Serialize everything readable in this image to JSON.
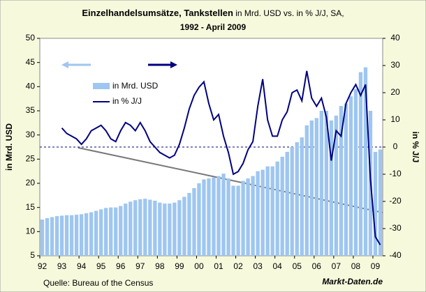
{
  "chart_data": {
    "type": "bar_line",
    "title": "Einzelhandelsumsätze, Tankstellen",
    "title_suffix": "in Mrd. USD vs. in % J/J, SA,",
    "subtitle": "1992 - April 2009",
    "y_label": "in Mrd. USD",
    "y2_label": "in % J/J",
    "source": "Quelle: Bureau of the Census",
    "brand": "Markt-Daten.de",
    "categories": [
      "92",
      null,
      null,
      null,
      "93",
      null,
      null,
      null,
      "94",
      null,
      null,
      null,
      "95",
      null,
      null,
      null,
      "96",
      null,
      null,
      null,
      "97",
      null,
      null,
      null,
      "98",
      null,
      null,
      null,
      "99",
      null,
      null,
      null,
      "00",
      null,
      null,
      null,
      "01",
      null,
      null,
      null,
      "02",
      null,
      null,
      null,
      "03",
      null,
      null,
      null,
      "04",
      null,
      null,
      null,
      "05",
      null,
      null,
      null,
      "06",
      null,
      null,
      null,
      "07",
      null,
      null,
      null,
      "08",
      null,
      null,
      null,
      "09",
      null
    ],
    "series": [
      {
        "name": "in Mrd. USD",
        "color": "#9ec6f0",
        "values": [
          12.5,
          12.8,
          13,
          13.2,
          13.3,
          13.4,
          13.4,
          13.5,
          13.6,
          13.8,
          14,
          14.3,
          14.6,
          14.9,
          15,
          15,
          15.3,
          15.8,
          16.2,
          16.5,
          16.7,
          16.8,
          16.6,
          16.4,
          16,
          15.8,
          15.8,
          16,
          16.5,
          17.2,
          18,
          19,
          20,
          20.8,
          21,
          21.2,
          21.5,
          22,
          21,
          19.5,
          19.5,
          20.5,
          21,
          21.5,
          22.5,
          22.8,
          23.5,
          23.5,
          24.5,
          25.5,
          26.5,
          27.5,
          28.5,
          29.5,
          32,
          33,
          33.5,
          35,
          35,
          33,
          34,
          36,
          36.5,
          38,
          39.5,
          43,
          44,
          35,
          26.5,
          27
        ]
      },
      {
        "name": "in % J/J",
        "color": "#000080",
        "axis": "y2",
        "values": [
          null,
          null,
          null,
          null,
          7,
          5,
          4,
          3,
          1,
          3,
          6,
          7,
          8,
          6,
          3,
          2,
          6,
          9,
          8,
          6,
          9,
          6,
          2,
          0,
          -2,
          -3,
          -4,
          -3,
          1,
          7,
          14,
          19,
          22,
          24,
          16,
          10,
          12,
          4,
          -2,
          -10,
          -9,
          -6,
          -1,
          2,
          15,
          25,
          10,
          4,
          4,
          10,
          13,
          20,
          21,
          17,
          28,
          18,
          15,
          18,
          11,
          -5,
          6,
          4,
          16,
          20,
          23,
          19,
          23,
          -12,
          -33,
          -36
        ]
      }
    ],
    "ylim": [
      5,
      50
    ],
    "yticks": [
      5,
      10,
      15,
      20,
      25,
      30,
      35,
      40,
      45,
      50
    ],
    "y2lim": [
      -40,
      40
    ],
    "y2ticks": [
      -40,
      -30,
      -20,
      -10,
      0,
      10,
      20,
      30,
      40
    ]
  }
}
